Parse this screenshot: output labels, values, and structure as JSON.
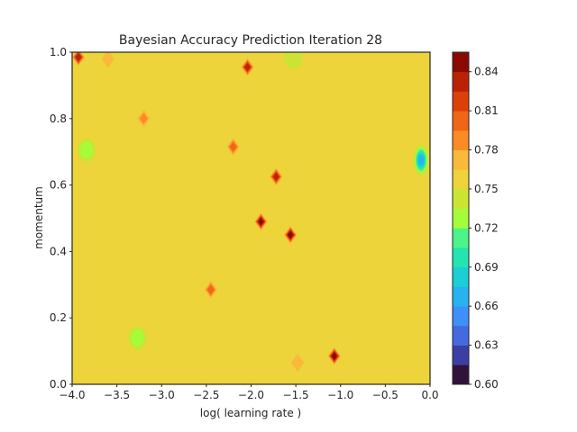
{
  "chart_data": {
    "type": "contour",
    "title": "Bayesian Accuracy Prediction Iteration 28",
    "xlabel": "log( learning rate )",
    "ylabel": "momentum",
    "xlim": [
      -4.0,
      0.0
    ],
    "ylim": [
      0.0,
      1.0
    ],
    "x_ticks": [
      "−4.0",
      "−3.5",
      "−3.0",
      "−2.5",
      "−2.0",
      "−1.5",
      "−1.0",
      "−0.5",
      "0.0"
    ],
    "x_tick_values": [
      -4.0,
      -3.5,
      -3.0,
      -2.5,
      -2.0,
      -1.5,
      -1.0,
      -0.5,
      0.0
    ],
    "y_ticks": [
      "0.0",
      "0.2",
      "0.4",
      "0.6",
      "0.8",
      "1.0"
    ],
    "y_tick_values": [
      0.0,
      0.2,
      0.4,
      0.6,
      0.8,
      1.0
    ],
    "background_level": 0.75,
    "colorbar": {
      "range": [
        0.6,
        0.855
      ],
      "tick_labels": [
        "0.60",
        "0.63",
        "0.66",
        "0.69",
        "0.72",
        "0.75",
        "0.78",
        "0.81",
        "0.84"
      ],
      "tick_values": [
        0.6,
        0.63,
        0.66,
        0.69,
        0.72,
        0.75,
        0.78,
        0.81,
        0.84
      ],
      "bands": [
        {
          "lo": 0.6,
          "hi": 0.615,
          "color": "#30123b"
        },
        {
          "lo": 0.615,
          "hi": 0.63,
          "color": "#3b3fa5"
        },
        {
          "lo": 0.63,
          "hi": 0.645,
          "color": "#4569de"
        },
        {
          "lo": 0.645,
          "hi": 0.66,
          "color": "#3f8ff8"
        },
        {
          "lo": 0.66,
          "hi": 0.675,
          "color": "#28b2ef"
        },
        {
          "lo": 0.675,
          "hi": 0.69,
          "color": "#1bcfd4"
        },
        {
          "lo": 0.69,
          "hi": 0.705,
          "color": "#24e4b0"
        },
        {
          "lo": 0.705,
          "hi": 0.72,
          "color": "#4bf58a"
        },
        {
          "lo": 0.72,
          "hi": 0.735,
          "color": "#a4fc3b"
        },
        {
          "lo": 0.735,
          "hi": 0.75,
          "color": "#cbe432"
        },
        {
          "lo": 0.75,
          "hi": 0.765,
          "color": "#ecd43a"
        },
        {
          "lo": 0.765,
          "hi": 0.78,
          "color": "#fbb93a"
        },
        {
          "lo": 0.78,
          "hi": 0.795,
          "color": "#fb8b24"
        },
        {
          "lo": 0.795,
          "hi": 0.81,
          "color": "#f16516"
        },
        {
          "lo": 0.81,
          "hi": 0.825,
          "color": "#dc3f08"
        },
        {
          "lo": 0.825,
          "hi": 0.84,
          "color": "#bb2203"
        },
        {
          "lo": 0.84,
          "hi": 0.855,
          "color": "#8a0a02"
        }
      ]
    },
    "hotspots": [
      {
        "x": -3.93,
        "y": 0.985,
        "peak": 0.84
      },
      {
        "x": -3.6,
        "y": 0.98,
        "peak": 0.78
      },
      {
        "x": -3.2,
        "y": 0.8,
        "peak": 0.79
      },
      {
        "x": -2.04,
        "y": 0.955,
        "peak": 0.83
      },
      {
        "x": -2.2,
        "y": 0.715,
        "peak": 0.8
      },
      {
        "x": -1.72,
        "y": 0.625,
        "peak": 0.83
      },
      {
        "x": -1.89,
        "y": 0.49,
        "peak": 0.85
      },
      {
        "x": -1.56,
        "y": 0.45,
        "peak": 0.85
      },
      {
        "x": -2.45,
        "y": 0.285,
        "peak": 0.8
      },
      {
        "x": -1.07,
        "y": 0.085,
        "peak": 0.85
      },
      {
        "x": -1.48,
        "y": 0.065,
        "peak": 0.78
      }
    ],
    "coldspots": [
      {
        "x": -1.53,
        "y": 0.985,
        "low": 0.735
      },
      {
        "x": -3.84,
        "y": 0.705,
        "low": 0.725
      },
      {
        "x": -3.27,
        "y": 0.14,
        "low": 0.725
      },
      {
        "x": -0.1,
        "y": 0.675,
        "low": 0.66
      }
    ]
  }
}
